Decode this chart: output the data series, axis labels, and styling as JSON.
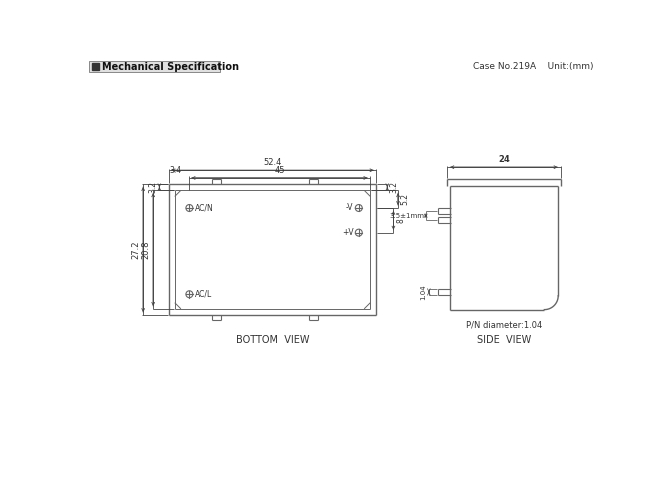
{
  "title_text": "Mechanical Specification",
  "case_info": "Case No.219A    Unit:(mm)",
  "bottom_view_label": "BOTTOM  VIEW",
  "side_view_label": "SIDE  VIEW",
  "pn_label": "P/N diameter:1.04",
  "bg_color": "#ffffff",
  "line_color": "#666666",
  "text_color": "#333333"
}
